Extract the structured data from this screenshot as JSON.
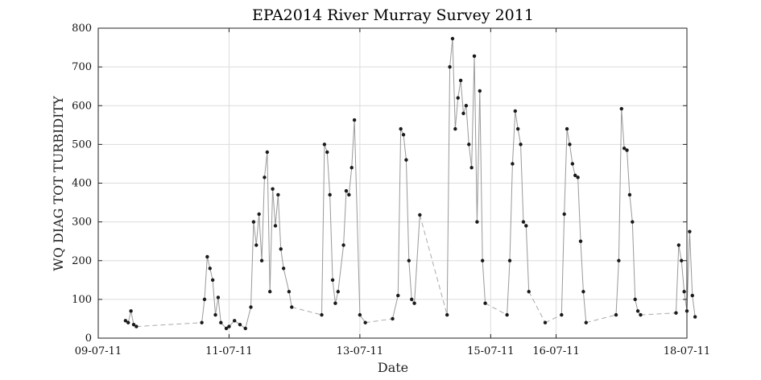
{
  "chart_data": {
    "type": "scatter",
    "title": "EPA2014 River Murray Survey 2011",
    "xlabel": "Date",
    "ylabel": "WQ DIAG TOT TURBIDITY",
    "ylim": [
      0,
      800
    ],
    "yticks": [
      0,
      100,
      200,
      300,
      400,
      500,
      600,
      700,
      800
    ],
    "xlim": [
      "2011-07-09T00:00",
      "2011-07-18T00:00"
    ],
    "xticks": [
      {
        "date": "2011-07-09",
        "label": "09-07-11"
      },
      {
        "date": "2011-07-11",
        "label": "11-07-11"
      },
      {
        "date": "2011-07-13",
        "label": "13-07-11"
      },
      {
        "date": "2011-07-15",
        "label": "15-07-11"
      },
      {
        "date": "2011-07-16",
        "label": "16-07-11"
      },
      {
        "date": "2011-07-18",
        "label": "18-07-11"
      }
    ],
    "grid": true,
    "colors": {
      "line": "#999999",
      "marker": "#1a1a1a",
      "dashed": "#aaaaaa"
    },
    "series": [
      {
        "points": [
          [
            "2011-07-09T10:00",
            45
          ],
          [
            "2011-07-09T11:00",
            40
          ],
          [
            "2011-07-09T12:00",
            70
          ],
          [
            "2011-07-09T13:00",
            35
          ],
          [
            "2011-07-09T14:00",
            30
          ],
          [
            "2011-07-10T14:00",
            40
          ],
          [
            "2011-07-10T15:00",
            100
          ],
          [
            "2011-07-10T16:00",
            210
          ],
          [
            "2011-07-10T17:00",
            180
          ],
          [
            "2011-07-10T18:00",
            150
          ],
          [
            "2011-07-10T19:00",
            60
          ],
          [
            "2011-07-10T20:00",
            105
          ],
          [
            "2011-07-10T21:00",
            40
          ],
          [
            "2011-07-10T23:00",
            25
          ],
          [
            "2011-07-11T00:00",
            30
          ],
          [
            "2011-07-11T02:00",
            45
          ],
          [
            "2011-07-11T04:00",
            35
          ],
          [
            "2011-07-11T06:00",
            25
          ],
          [
            "2011-07-11T08:00",
            80
          ],
          [
            "2011-07-11T09:00",
            300
          ],
          [
            "2011-07-11T10:00",
            240
          ],
          [
            "2011-07-11T11:00",
            320
          ],
          [
            "2011-07-11T12:00",
            200
          ],
          [
            "2011-07-11T13:00",
            415
          ],
          [
            "2011-07-11T14:00",
            480
          ],
          [
            "2011-07-11T15:00",
            120
          ],
          [
            "2011-07-11T16:00",
            385
          ],
          [
            "2011-07-11T17:00",
            290
          ],
          [
            "2011-07-11T18:00",
            370
          ],
          [
            "2011-07-11T19:00",
            230
          ],
          [
            "2011-07-11T20:00",
            180
          ],
          [
            "2011-07-11T22:00",
            120
          ],
          [
            "2011-07-11T23:00",
            80
          ],
          [
            "2011-07-12T10:00",
            60
          ],
          [
            "2011-07-12T11:00",
            500
          ],
          [
            "2011-07-12T12:00",
            480
          ],
          [
            "2011-07-12T13:00",
            370
          ],
          [
            "2011-07-12T14:00",
            150
          ],
          [
            "2011-07-12T15:00",
            90
          ],
          [
            "2011-07-12T16:00",
            120
          ],
          [
            "2011-07-12T18:00",
            240
          ],
          [
            "2011-07-12T19:00",
            380
          ],
          [
            "2011-07-12T20:00",
            370
          ],
          [
            "2011-07-12T21:00",
            440
          ],
          [
            "2011-07-12T22:00",
            563
          ],
          [
            "2011-07-13T00:00",
            60
          ],
          [
            "2011-07-13T02:00",
            40
          ],
          [
            "2011-07-13T12:00",
            50
          ],
          [
            "2011-07-13T14:00",
            110
          ],
          [
            "2011-07-13T15:00",
            540
          ],
          [
            "2011-07-13T16:00",
            525
          ],
          [
            "2011-07-13T17:00",
            460
          ],
          [
            "2011-07-13T18:00",
            200
          ],
          [
            "2011-07-13T19:00",
            100
          ],
          [
            "2011-07-13T20:00",
            90
          ],
          [
            "2011-07-13T22:00",
            318
          ],
          [
            "2011-07-14T08:00",
            60
          ],
          [
            "2011-07-14T09:00",
            700
          ],
          [
            "2011-07-14T10:00",
            773
          ],
          [
            "2011-07-14T11:00",
            540
          ],
          [
            "2011-07-14T12:00",
            620
          ],
          [
            "2011-07-14T13:00",
            665
          ],
          [
            "2011-07-14T14:00",
            580
          ],
          [
            "2011-07-14T15:00",
            600
          ],
          [
            "2011-07-14T16:00",
            500
          ],
          [
            "2011-07-14T17:00",
            440
          ],
          [
            "2011-07-14T18:00",
            728
          ],
          [
            "2011-07-14T19:00",
            300
          ],
          [
            "2011-07-14T20:00",
            638
          ],
          [
            "2011-07-14T21:00",
            200
          ],
          [
            "2011-07-14T22:00",
            90
          ],
          [
            "2011-07-15T06:00",
            60
          ],
          [
            "2011-07-15T07:00",
            200
          ],
          [
            "2011-07-15T08:00",
            450
          ],
          [
            "2011-07-15T09:00",
            586
          ],
          [
            "2011-07-15T10:00",
            540
          ],
          [
            "2011-07-15T11:00",
            500
          ],
          [
            "2011-07-15T12:00",
            300
          ],
          [
            "2011-07-15T13:00",
            290
          ],
          [
            "2011-07-15T14:00",
            120
          ],
          [
            "2011-07-15T20:00",
            40
          ],
          [
            "2011-07-16T02:00",
            60
          ],
          [
            "2011-07-16T03:00",
            320
          ],
          [
            "2011-07-16T04:00",
            540
          ],
          [
            "2011-07-16T05:00",
            500
          ],
          [
            "2011-07-16T06:00",
            450
          ],
          [
            "2011-07-16T07:00",
            420
          ],
          [
            "2011-07-16T08:00",
            415
          ],
          [
            "2011-07-16T09:00",
            250
          ],
          [
            "2011-07-16T10:00",
            120
          ],
          [
            "2011-07-16T11:00",
            40
          ],
          [
            "2011-07-16T22:00",
            60
          ],
          [
            "2011-07-16T23:00",
            200
          ],
          [
            "2011-07-17T00:00",
            592
          ],
          [
            "2011-07-17T01:00",
            490
          ],
          [
            "2011-07-17T02:00",
            485
          ],
          [
            "2011-07-17T03:00",
            370
          ],
          [
            "2011-07-17T04:00",
            300
          ],
          [
            "2011-07-17T05:00",
            100
          ],
          [
            "2011-07-17T06:00",
            70
          ],
          [
            "2011-07-17T07:00",
            60
          ],
          [
            "2011-07-17T20:00",
            65
          ],
          [
            "2011-07-17T21:00",
            240
          ],
          [
            "2011-07-17T22:00",
            200
          ],
          [
            "2011-07-17T23:00",
            120
          ],
          [
            "2011-07-18T00:00",
            70
          ],
          [
            "2011-07-18T01:00",
            275
          ],
          [
            "2011-07-18T02:00",
            110
          ],
          [
            "2011-07-18T03:00",
            55
          ]
        ]
      }
    ]
  }
}
